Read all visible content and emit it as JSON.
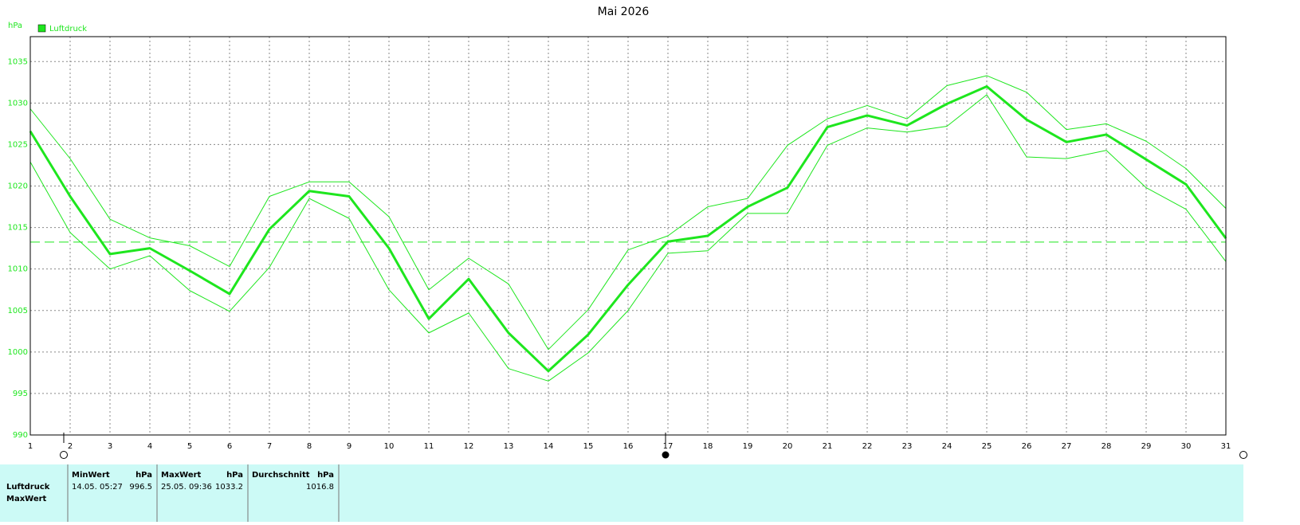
{
  "chart_data": {
    "type": "line",
    "title": "Mai 2026",
    "y_label": "hPa",
    "x": [
      1,
      2,
      3,
      4,
      5,
      6,
      7,
      8,
      9,
      10,
      11,
      12,
      13,
      14,
      15,
      16,
      17,
      18,
      19,
      20,
      21,
      22,
      23,
      24,
      25,
      26,
      27,
      28,
      29,
      30,
      31
    ],
    "xlim": [
      1,
      31
    ],
    "xticks": [
      1,
      2,
      3,
      4,
      5,
      6,
      7,
      8,
      9,
      10,
      11,
      12,
      13,
      14,
      15,
      16,
      17,
      18,
      19,
      20,
      21,
      22,
      23,
      24,
      25,
      26,
      27,
      28,
      29,
      30,
      31
    ],
    "ylim": [
      990,
      1038
    ],
    "yticks": [
      990,
      995,
      1000,
      1005,
      1010,
      1015,
      1020,
      1025,
      1030,
      1035
    ],
    "grid": true,
    "reference_line": 1013.25,
    "series": [
      {
        "name": "Luftdruck",
        "color": "#1ee61e",
        "linewidth": 3,
        "values": [
          1026.6,
          1018.75,
          1011.8,
          1012.5,
          1009.8,
          1007.0,
          1014.8,
          1019.4,
          1018.75,
          1012.5,
          1004.0,
          1008.8,
          1002.3,
          997.7,
          1002.1,
          1008.1,
          1013.3,
          1014.0,
          1017.5,
          1019.8,
          1027.1,
          1028.5,
          1027.3,
          1029.9,
          1032.0,
          1028.0,
          1025.3,
          1026.2,
          1023.2,
          1020.2,
          1013.7
        ]
      },
      {
        "color": "#1ee61e",
        "linewidth": 1,
        "values": [
          1029.3,
          1023.3,
          1016.0,
          1013.75,
          1012.8,
          1010.3,
          1018.75,
          1020.5,
          1020.5,
          1016.3,
          1007.5,
          1011.3,
          1008.2,
          1000.3,
          1005.1,
          1012.3,
          1014.0,
          1017.5,
          1018.5,
          1024.9,
          1028.1,
          1029.7,
          1028.1,
          1032.1,
          1033.3,
          1031.3,
          1026.8,
          1027.5,
          1025.4,
          1022.1,
          1017.3
        ]
      },
      {
        "color": "#1ee61e",
        "linewidth": 1,
        "values": [
          1022.9,
          1014.4,
          1010.0,
          1011.6,
          1007.4,
          1004.9,
          1010.2,
          1018.5,
          1016.1,
          1007.5,
          1002.3,
          1004.7,
          998.0,
          996.5,
          999.9,
          1005.0,
          1011.9,
          1012.2,
          1016.7,
          1016.7,
          1024.9,
          1027.0,
          1026.5,
          1027.2,
          1031.0,
          1023.5,
          1023.3,
          1024.3,
          1019.8,
          1017.2,
          1010.9
        ]
      }
    ]
  },
  "table": {
    "columns": [
      {
        "label": "MinWert",
        "unit": "hPa"
      },
      {
        "label": "MaxWert",
        "unit": "hPa"
      },
      {
        "label": "Durchschnitt",
        "unit": "hPa"
      }
    ],
    "rows": [
      {
        "label": "Luftdruck",
        "cells": [
          {
            "time": "14.05. 05:27",
            "value": 996.5
          },
          {
            "time": "25.05. 09:36",
            "value": 1033.2
          },
          {
            "value": 1016.8
          }
        ]
      },
      {
        "label": "MaxWert"
      }
    ]
  }
}
